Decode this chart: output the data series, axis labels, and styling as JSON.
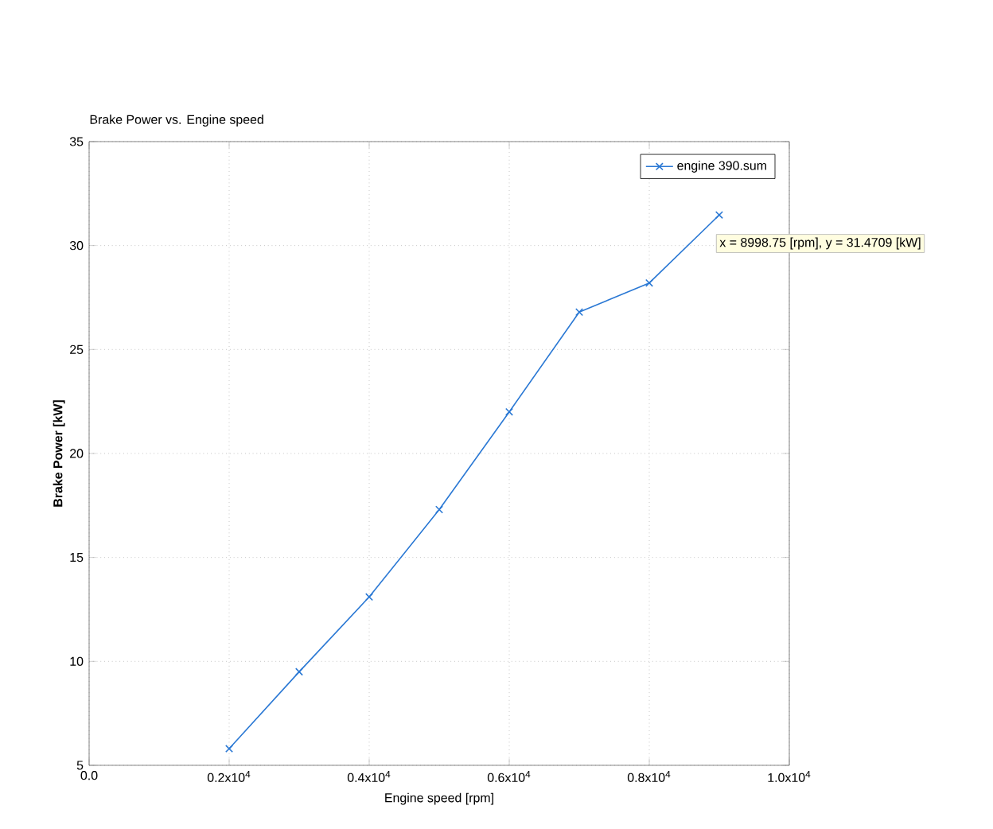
{
  "chart_data": {
    "type": "line",
    "title": "Brake Power vs. Engine speed",
    "xlabel": "Engine speed  [rpm]",
    "ylabel": "Brake Power  [kW]",
    "x": [
      2000,
      3000,
      4000,
      5000,
      6000,
      7000,
      8000,
      8998.75
    ],
    "series": [
      {
        "name": "engine 390.sum",
        "color": "#2a78d4",
        "values": [
          5.8,
          9.5,
          13.1,
          17.3,
          22.0,
          26.8,
          28.2,
          31.4709
        ]
      }
    ],
    "xlim": [
      0,
      10000
    ],
    "ylim": [
      5,
      35
    ],
    "xticks": [
      {
        "value": 0,
        "label": "0.0"
      },
      {
        "value": 2000,
        "label": "0.2x10$^{4}$"
      },
      {
        "value": 4000,
        "label": "0.4x10$^{4}$"
      },
      {
        "value": 6000,
        "label": "0.6x10$^{4}$"
      },
      {
        "value": 8000,
        "label": "0.8x10$^{4}$"
      },
      {
        "value": 10000,
        "label": "1.0x10$^{4}$"
      }
    ],
    "yticks": [
      5,
      10,
      15,
      20,
      25,
      30,
      35
    ],
    "annotations": [
      {
        "text": "x = 8998.75 [rpm], y = 31.4709 [kW]",
        "x": 8998.75,
        "y": 31.4709
      }
    ],
    "grid": true,
    "legend": "top right",
    "marker": "cross",
    "line_style": "solid"
  }
}
